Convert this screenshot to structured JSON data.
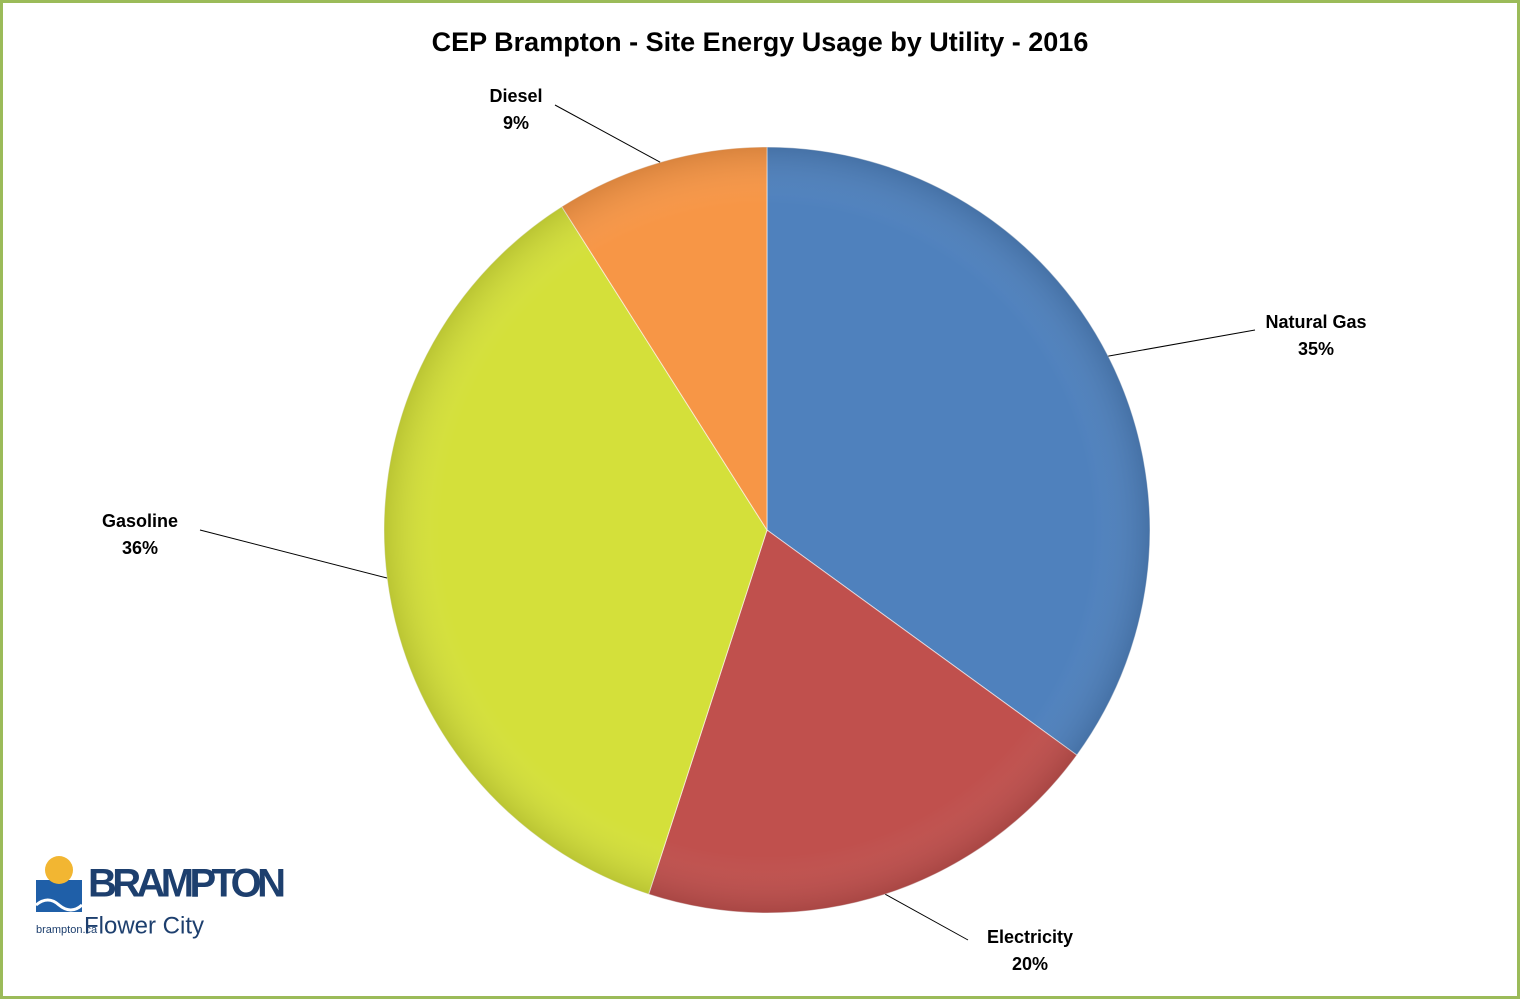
{
  "chart_data": {
    "type": "pie",
    "title": "CEP Brampton - Site Energy Usage by Utility -  2016",
    "categories": [
      "Natural Gas",
      "Electricity",
      "Gasoline",
      "Diesel"
    ],
    "values": [
      35,
      20,
      36,
      9
    ],
    "value_labels": [
      "35%",
      "20%",
      "36%",
      "9%"
    ],
    "colors": [
      "#4f81bd",
      "#c0504d",
      "#d4e03a",
      "#f79646"
    ],
    "start_angle": 0,
    "direction": "clockwise"
  },
  "logo": {
    "name": "BRAMPTON",
    "tagline": "Flower City",
    "url": "brampton.ca"
  }
}
